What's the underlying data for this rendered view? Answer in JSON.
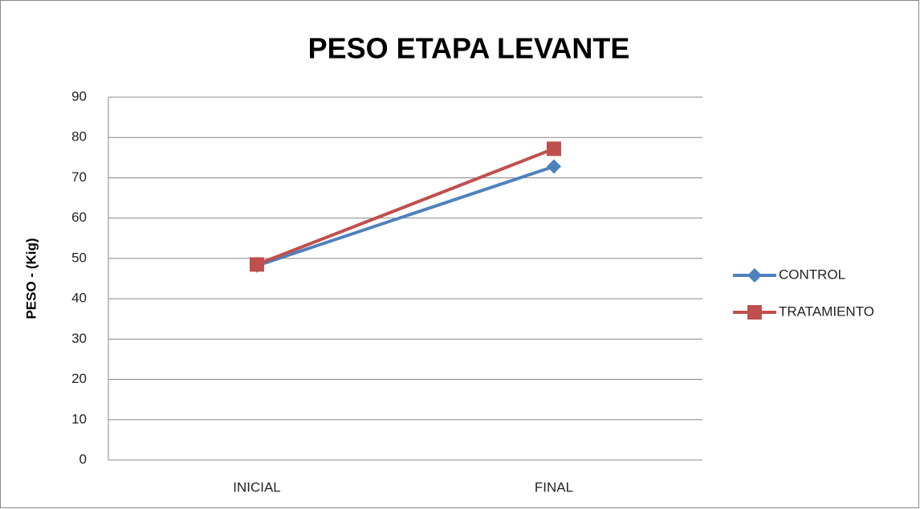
{
  "chart_data": {
    "type": "line",
    "title": "PESO ETAPA LEVANTE",
    "y_label": "PESO - (Kig)",
    "categories": [
      "INICIAL",
      "FINAL"
    ],
    "series": [
      {
        "name": "CONTROL",
        "color": "#4f81bd",
        "marker": "diamond",
        "values": [
          48.2,
          72.8
        ]
      },
      {
        "name": "TRATAMIENTO",
        "color": "#c0504d",
        "marker": "square",
        "values": [
          48.5,
          77.2
        ]
      }
    ],
    "ylim": [
      0,
      90
    ],
    "yticks": [
      0,
      10,
      20,
      30,
      40,
      50,
      60,
      70,
      80,
      90
    ],
    "grid": true,
    "legend": "right"
  }
}
